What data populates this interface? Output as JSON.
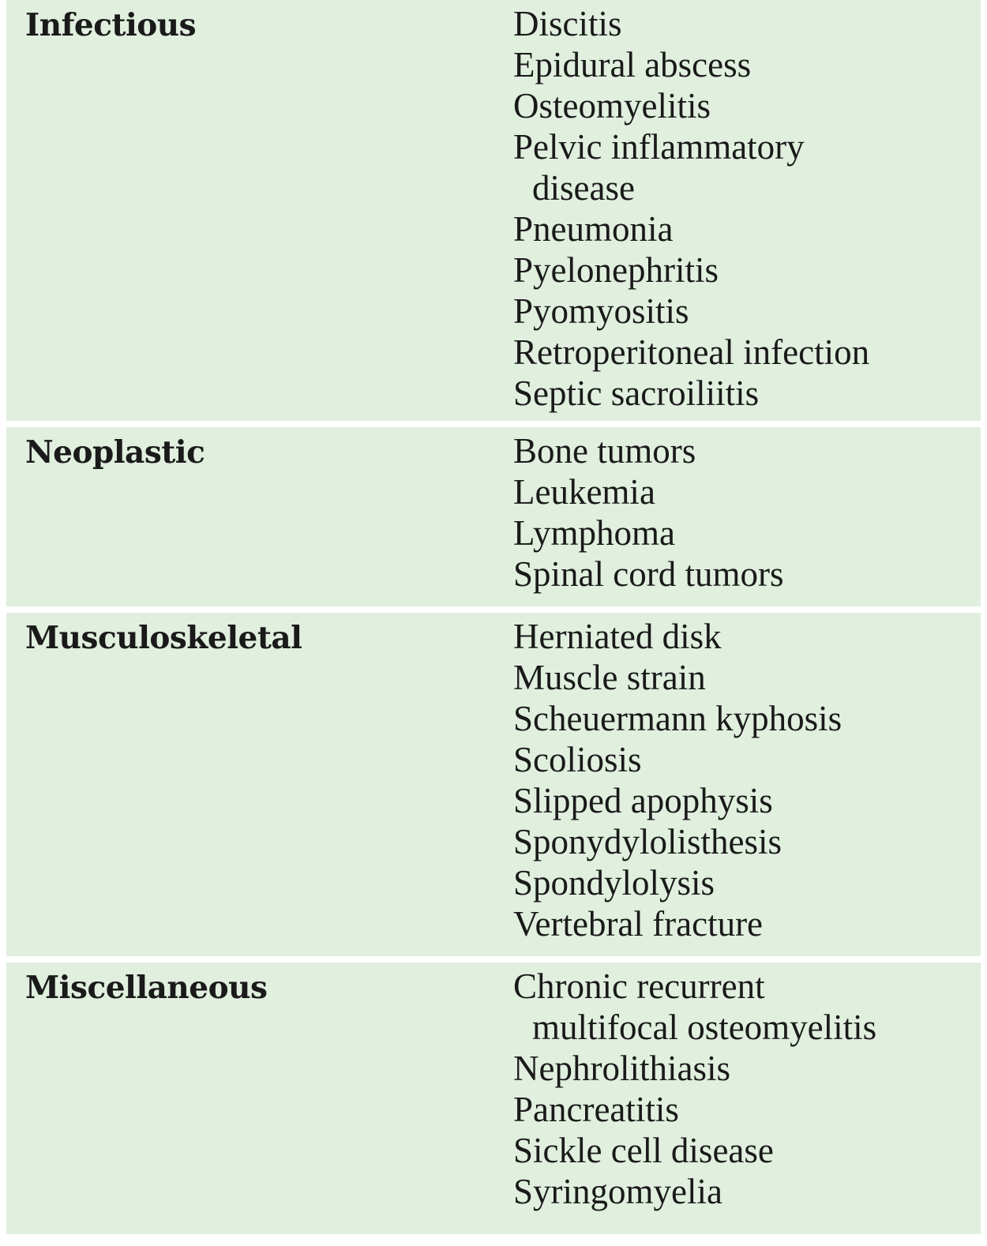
{
  "rows": [
    {
      "category": "Infectious",
      "items": [
        [
          "Discitis"
        ],
        [
          "Epidural abscess"
        ],
        [
          "Osteomyelitis"
        ],
        [
          "Pelvic inflammatory",
          "disease"
        ],
        [
          "Pneumonia"
        ],
        [
          "Pyelonephritis"
        ],
        [
          "Pyomyositis"
        ],
        [
          "Retroperitoneal infection"
        ],
        [
          "Septic sacroiliitis"
        ]
      ]
    },
    {
      "category": "Neoplastic",
      "items": [
        [
          "Bone tumors"
        ],
        [
          "Leukemia"
        ],
        [
          "Lymphoma"
        ],
        [
          "Spinal cord tumors"
        ]
      ]
    },
    {
      "category": "Musculoskeletal",
      "items": [
        [
          "Herniated disk"
        ],
        [
          "Muscle strain"
        ],
        [
          "Scheuermann kyphosis"
        ],
        [
          "Scoliosis"
        ],
        [
          "Slipped apophysis"
        ],
        [
          "Sponydylolisthesis"
        ],
        [
          "Spondylolysis"
        ],
        [
          "Vertebral fracture"
        ]
      ]
    },
    {
      "category": "Miscellaneous",
      "items": [
        [
          "Chronic recurrent",
          "multifocal osteomyelitis"
        ],
        [
          "Nephrolithiasis"
        ],
        [
          "Pancreatitis"
        ],
        [
          "Sickle cell disease"
        ],
        [
          "Syringomyelia"
        ]
      ]
    }
  ],
  "colors": {
    "row_background": "#e0efde",
    "separator": "#ffffff",
    "text": "#1a1a1a"
  }
}
